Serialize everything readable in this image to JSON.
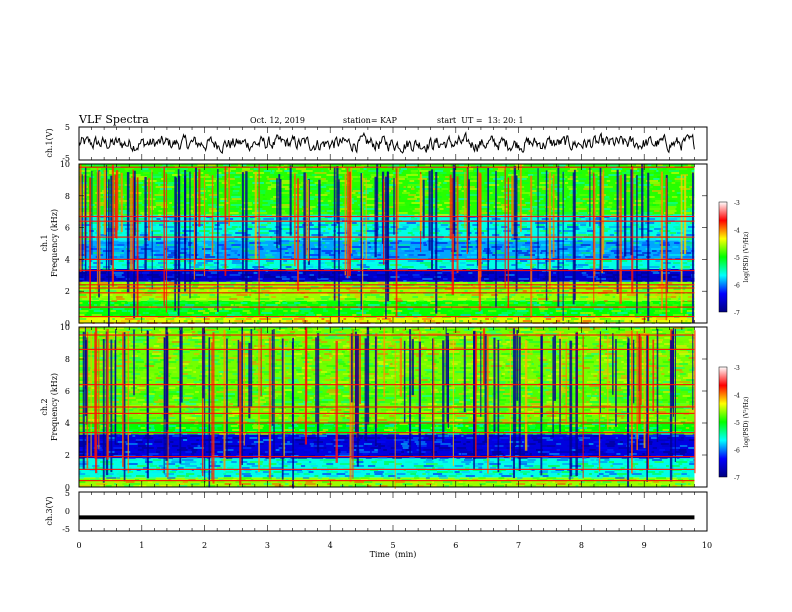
{
  "header": {
    "title": "VLF Spectra",
    "date": "Oct. 12, 2019",
    "station": "station= KAP",
    "start_ut": "start  UT =  13: 20: 1"
  },
  "colorbar": {
    "label": "log(PSD) (V²/Hz)",
    "ticks": [
      "-3",
      "-4",
      "-5",
      "-6",
      "-7"
    ],
    "range": [
      -7,
      -3
    ],
    "colors": [
      "#000080",
      "#0000ff",
      "#00ffff",
      "#00ff00",
      "#ffff00",
      "#ff0000",
      "#ffffff"
    ]
  },
  "chart_data": [
    {
      "type": "line",
      "name": "ch1-waveform",
      "ylabel": "ch.1(V)",
      "ylim": [
        -5,
        5
      ],
      "yticks": [
        "5",
        "-5"
      ],
      "xlim": [
        0,
        10
      ],
      "color": "#000000",
      "description_values": {
        "mean": 0,
        "amplitude_range": [
          -3,
          3
        ],
        "min_x": 0,
        "max_x": 9.8
      }
    },
    {
      "type": "heatmap",
      "name": "ch1-spectrogram",
      "ylabel": "ch.1\nFrequency (kHz)",
      "ylabel_top": "ch.1",
      "ylabel_bottom": "Frequency (kHz)",
      "xlim": [
        0,
        9.8
      ],
      "ylim": [
        0,
        10
      ],
      "yticks": [
        "0",
        "2",
        "4",
        "6",
        "8",
        "10"
      ],
      "zlim": [
        -7,
        -3
      ],
      "bands": [
        {
          "from": 0,
          "to": 0.4,
          "level": -4.4
        },
        {
          "from": 0.4,
          "to": 1.4,
          "level": -5.0
        },
        {
          "from": 1.4,
          "to": 2.6,
          "level": -4.6
        },
        {
          "from": 2.6,
          "to": 3.4,
          "level": -6.6
        },
        {
          "from": 3.4,
          "to": 4.0,
          "level": -5.6
        },
        {
          "from": 4.0,
          "to": 5.2,
          "level": -5.9
        },
        {
          "from": 5.2,
          "to": 6.8,
          "level": -5.6
        },
        {
          "from": 6.8,
          "to": 10,
          "level": -4.9
        }
      ],
      "lines": [
        0.4,
        1.0,
        1.9,
        2.2,
        2.4,
        3.3,
        4.0,
        5.4,
        6.4,
        6.7,
        9.8
      ]
    },
    {
      "type": "heatmap",
      "name": "ch2-spectrogram",
      "ylabel_top": "ch.2",
      "ylabel_bottom": "Frequency (kHz)",
      "xlim": [
        0,
        9.8
      ],
      "ylim": [
        0,
        10
      ],
      "yticks": [
        "0",
        "2",
        "4",
        "6",
        "8",
        "10"
      ],
      "zlim": [
        -7,
        -3
      ],
      "bands": [
        {
          "from": 0,
          "to": 0.6,
          "level": -4.6
        },
        {
          "from": 0.6,
          "to": 1.8,
          "level": -5.6
        },
        {
          "from": 1.8,
          "to": 3.3,
          "level": -6.5
        },
        {
          "from": 3.3,
          "to": 4.1,
          "level": -5.0
        },
        {
          "from": 4.1,
          "to": 5.2,
          "level": -4.7
        },
        {
          "from": 5.2,
          "to": 6.3,
          "level": -4.8
        },
        {
          "from": 6.3,
          "to": 10,
          "level": -4.7
        }
      ],
      "lines": [
        0.4,
        1.1,
        1.9,
        3.4,
        4.0,
        4.6,
        5.0,
        6.4,
        8.6,
        9.5
      ]
    },
    {
      "type": "line",
      "name": "ch3-waveform",
      "ylabel": "ch.3(V)",
      "ylim": [
        -5,
        5
      ],
      "yticks": [
        "5",
        "0",
        "-5"
      ],
      "xlim": [
        0,
        10
      ],
      "xlabel": "Time  (min)",
      "xticks": [
        "0",
        "1",
        "2",
        "3",
        "4",
        "5",
        "6",
        "7",
        "8",
        "9",
        "10"
      ],
      "constant_value": -1.5,
      "x_end": 9.8,
      "color": "#000000"
    }
  ]
}
